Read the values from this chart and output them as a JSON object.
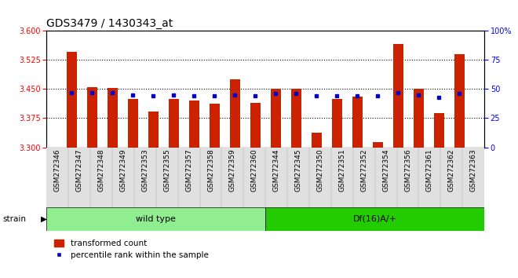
{
  "title": "GDS3479 / 1430343_at",
  "categories": [
    "GSM272346",
    "GSM272347",
    "GSM272348",
    "GSM272349",
    "GSM272353",
    "GSM272355",
    "GSM272357",
    "GSM272358",
    "GSM272359",
    "GSM272360",
    "GSM272344",
    "GSM272345",
    "GSM272350",
    "GSM272351",
    "GSM272352",
    "GSM272354",
    "GSM272356",
    "GSM272361",
    "GSM272362",
    "GSM272363"
  ],
  "transformed_counts": [
    3.545,
    3.455,
    3.453,
    3.425,
    3.393,
    3.425,
    3.42,
    3.413,
    3.475,
    3.415,
    3.45,
    3.45,
    3.338,
    3.425,
    3.43,
    3.313,
    3.565,
    3.45,
    3.388,
    3.54
  ],
  "percentile_values": [
    47,
    47,
    47,
    45,
    44,
    45,
    44,
    44,
    45,
    44,
    46,
    46,
    44,
    44,
    44,
    44,
    47,
    45,
    43,
    46
  ],
  "wild_type_count": 10,
  "ylim_left": [
    3.3,
    3.6
  ],
  "ylim_right": [
    0,
    100
  ],
  "yticks_left": [
    3.3,
    3.375,
    3.45,
    3.525,
    3.6
  ],
  "yticks_right": [
    0,
    25,
    50,
    75,
    100
  ],
  "bar_color": "#cc2200",
  "dot_color": "#0000cc",
  "wt_bg": "#90ee90",
  "df_bg": "#22cc00",
  "title_fontsize": 10,
  "base_value": 3.3
}
